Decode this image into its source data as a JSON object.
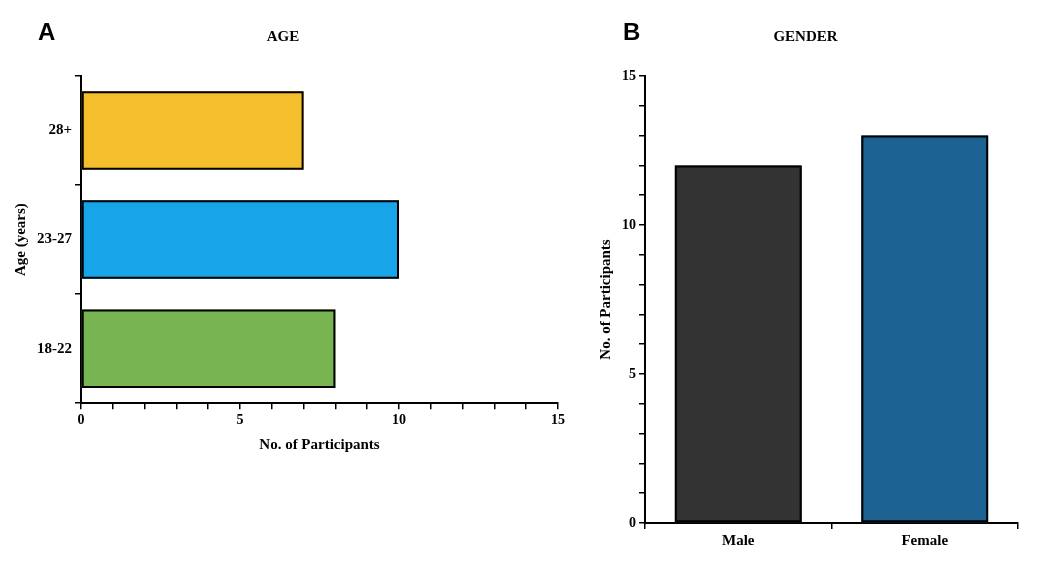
{
  "chart_data": [
    {
      "type": "bar",
      "title": "AGE",
      "annotations": [
        "A"
      ],
      "orientation": "horizontal",
      "categories": [
        "28+",
        "23-27",
        "18-22"
      ],
      "values": [
        7,
        10,
        8
      ],
      "colors": [
        "#f4be2d",
        "#18a4e8",
        "#79b453"
      ],
      "xlabel": "No. of Participants",
      "ylabel": "Age (years)",
      "xlim": [
        0,
        15
      ],
      "xticks": [
        0,
        {
          "value": 1,
          "label": null
        },
        {
          "value": 2,
          "label": null
        },
        {
          "value": 3,
          "label": null
        },
        {
          "value": 4,
          "label": null
        },
        5,
        {
          "value": 6,
          "label": null
        },
        {
          "value": 7,
          "label": null
        },
        {
          "value": 8,
          "label": null
        },
        {
          "value": 9,
          "label": null
        },
        10,
        {
          "value": 11,
          "label": null
        },
        {
          "value": 12,
          "label": null
        },
        {
          "value": 13,
          "label": null
        },
        {
          "value": 14,
          "label": null
        },
        15
      ],
      "grid": false,
      "legend": false
    },
    {
      "type": "bar",
      "title": "GENDER",
      "annotations": [
        "B"
      ],
      "categories": [
        "Male",
        "Female"
      ],
      "values": [
        12,
        13
      ],
      "colors": [
        "#333333",
        "#1c6292"
      ],
      "ylabel": "No. of Participants",
      "ylim": [
        0,
        15
      ],
      "yticks": [
        0,
        {
          "value": 1,
          "label": null
        },
        {
          "value": 2,
          "label": null
        },
        {
          "value": 3,
          "label": null
        },
        {
          "value": 4,
          "label": null
        },
        5,
        {
          "value": 6,
          "label": null
        },
        {
          "value": 7,
          "label": null
        },
        {
          "value": 8,
          "label": null
        },
        {
          "value": 9,
          "label": null
        },
        10,
        {
          "value": 11,
          "label": null
        },
        {
          "value": 12,
          "label": null
        },
        {
          "value": 13,
          "label": null
        },
        {
          "value": 14,
          "label": null
        },
        15
      ],
      "grid": false,
      "legend": false
    }
  ]
}
